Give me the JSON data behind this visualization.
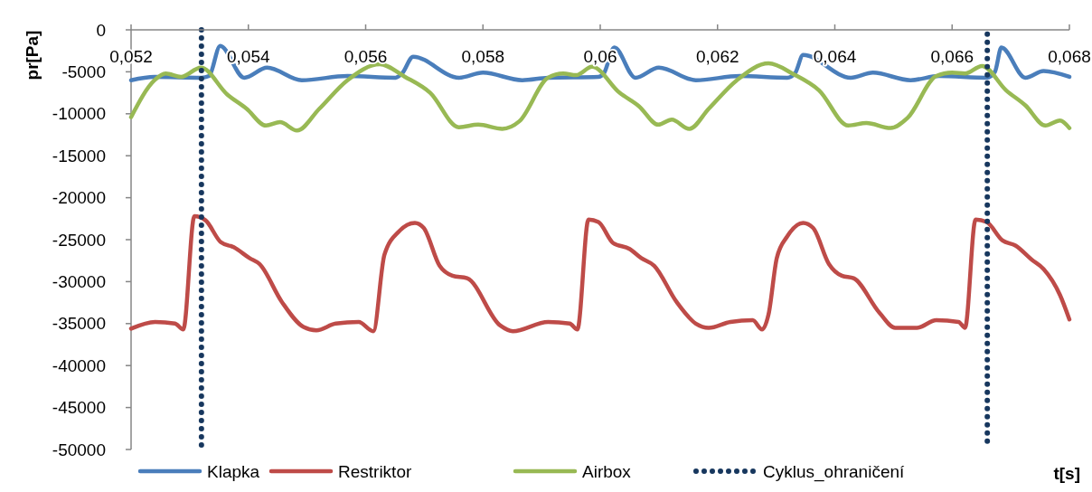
{
  "chart_data": {
    "type": "line",
    "xlabel": "t[s]",
    "ylabel": "pr[Pa]",
    "xlim": [
      0.052,
      0.068
    ],
    "ylim": [
      -50000,
      0
    ],
    "xticks": [
      {
        "value": 0.052,
        "label": "0,052"
      },
      {
        "value": 0.054,
        "label": "0,054"
      },
      {
        "value": 0.056,
        "label": "0,056"
      },
      {
        "value": 0.058,
        "label": "0,058"
      },
      {
        "value": 0.06,
        "label": "0,06"
      },
      {
        "value": 0.062,
        "label": "0,062"
      },
      {
        "value": 0.064,
        "label": "0,064"
      },
      {
        "value": 0.066,
        "label": "0,066"
      },
      {
        "value": 0.068,
        "label": "0,068"
      }
    ],
    "yticks": [
      0,
      -5000,
      -10000,
      -15000,
      -20000,
      -25000,
      -30000,
      -35000,
      -40000,
      -45000,
      -50000
    ],
    "grid": false,
    "legend": "bottom",
    "line_style": "solid",
    "marker": "none",
    "series": [
      {
        "name": "Klapka",
        "color": "#4a7ebb",
        "x": [
          0.052,
          0.0524,
          0.0532,
          0.05333,
          0.05352,
          0.05393,
          0.05432,
          0.05491,
          0.05569,
          0.05651,
          0.05662,
          0.05681,
          0.05759,
          0.058,
          0.05867,
          0.05911,
          0.05997,
          0.06006,
          0.06024,
          0.0606,
          0.061,
          0.06163,
          0.06238,
          0.06319,
          0.06332,
          0.06346,
          0.06427,
          0.06465,
          0.06529,
          0.06578,
          0.06659,
          0.06673,
          0.06684,
          0.06725,
          0.06756,
          0.068
        ],
        "values": [
          -6000,
          -5600,
          -5700,
          -5500,
          -1900,
          -5700,
          -4500,
          -6000,
          -5500,
          -5700,
          -5200,
          -3200,
          -5700,
          -5100,
          -6000,
          -5700,
          -5600,
          -5200,
          -2100,
          -5700,
          -4500,
          -6000,
          -5500,
          -5700,
          -5200,
          -3000,
          -5700,
          -5100,
          -6000,
          -5500,
          -5700,
          -5000,
          -2100,
          -5700,
          -4900,
          -5600
        ]
      },
      {
        "name": "Restriktor",
        "color": "#be4b48",
        "x": [
          0.052,
          0.05241,
          0.05275,
          0.05289,
          0.05308,
          0.05327,
          0.05353,
          0.05375,
          0.05402,
          0.05419,
          0.05457,
          0.05494,
          0.05516,
          0.05549,
          0.05588,
          0.05613,
          0.05632,
          0.05657,
          0.05684,
          0.05699,
          0.05726,
          0.05748,
          0.05773,
          0.05829,
          0.05851,
          0.05911,
          0.05948,
          0.05961,
          0.0598,
          0.05997,
          0.06022,
          0.0605,
          0.0607,
          0.06092,
          0.0613,
          0.06163,
          0.06185,
          0.06222,
          0.0626,
          0.06276,
          0.06287,
          0.06301,
          0.06319,
          0.06346,
          0.06363,
          0.0639,
          0.06412,
          0.06432,
          0.06476,
          0.06503,
          0.0654,
          0.06573,
          0.06611,
          0.06622,
          0.0664,
          0.06659,
          0.06686,
          0.06708,
          0.06736,
          0.06756,
          0.06784,
          0.068
        ],
        "values": [
          -35600,
          -34800,
          -35000,
          -35700,
          -22200,
          -22700,
          -25300,
          -25900,
          -27200,
          -27900,
          -32400,
          -35400,
          -35800,
          -35000,
          -34800,
          -35900,
          -26800,
          -24000,
          -23000,
          -23600,
          -28100,
          -29300,
          -29600,
          -35200,
          -35900,
          -34800,
          -35000,
          -35700,
          -22600,
          -22900,
          -25400,
          -26100,
          -27200,
          -28100,
          -32400,
          -35000,
          -35500,
          -34800,
          -34600,
          -35700,
          -33900,
          -27200,
          -24600,
          -23000,
          -23600,
          -27900,
          -29300,
          -29600,
          -33700,
          -35500,
          -35500,
          -34600,
          -34800,
          -35500,
          -22600,
          -22900,
          -25100,
          -25700,
          -27400,
          -28500,
          -31600,
          -34500
        ]
      },
      {
        "name": "Airbox",
        "color": "#98b954",
        "x": [
          0.052,
          0.0524,
          0.05259,
          0.05285,
          0.05319,
          0.05364,
          0.05397,
          0.0543,
          0.05454,
          0.05483,
          0.05521,
          0.05569,
          0.05624,
          0.05667,
          0.0571,
          0.05759,
          0.05792,
          0.05833,
          0.05862,
          0.05911,
          0.05937,
          0.05959,
          0.05986,
          0.06033,
          0.06066,
          0.06099,
          0.06122,
          0.06152,
          0.06185,
          0.06233,
          0.06287,
          0.0633,
          0.06373,
          0.06423,
          0.06454,
          0.06495,
          0.06524,
          0.06573,
          0.066,
          0.06622,
          0.06651,
          0.06692,
          0.06725,
          0.06759,
          0.06784,
          0.068
        ],
        "values": [
          -10400,
          -6000,
          -5200,
          -5600,
          -4500,
          -7700,
          -9400,
          -11400,
          -11000,
          -12000,
          -9400,
          -6000,
          -4100,
          -5600,
          -7500,
          -11600,
          -11300,
          -11800,
          -10900,
          -5700,
          -5200,
          -5400,
          -4400,
          -7500,
          -9100,
          -11300,
          -10700,
          -11800,
          -9400,
          -6000,
          -4000,
          -5300,
          -7200,
          -11400,
          -11100,
          -11700,
          -10500,
          -5500,
          -5100,
          -5200,
          -4300,
          -7200,
          -9000,
          -11400,
          -10800,
          -11700
        ]
      },
      {
        "name": "Cyklus_ohraničení",
        "color": "#17375e",
        "line_style": "dotted",
        "x": [
          0.0532,
          0.0532,
          0.0599,
          0.0666,
          0.0666
        ],
        "values": [
          0,
          -50000,
          null,
          -500,
          -49500
        ]
      }
    ]
  }
}
